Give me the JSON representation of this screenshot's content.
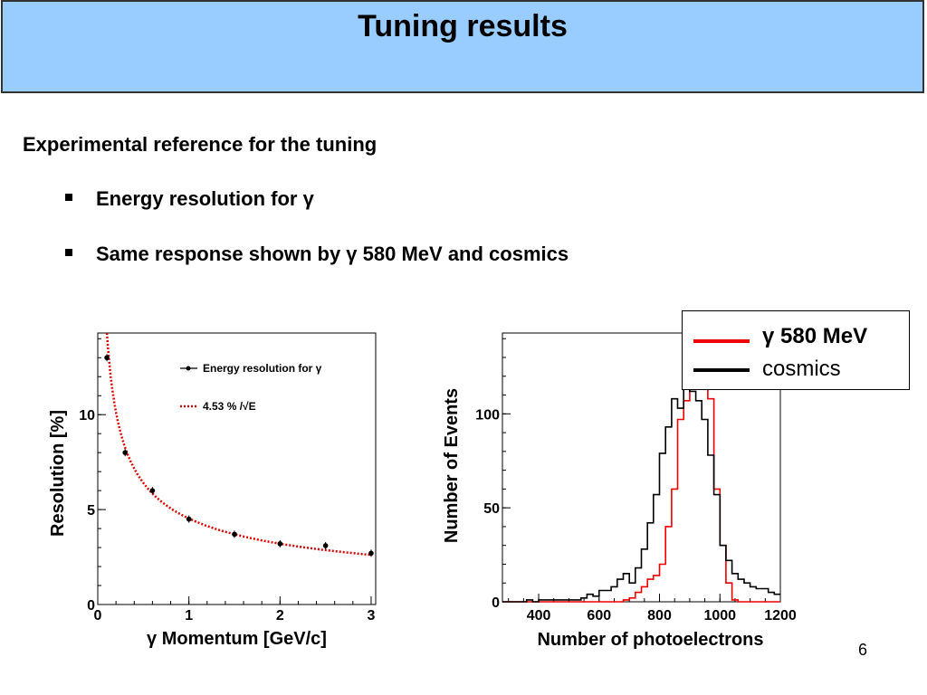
{
  "slide": {
    "title": "Tuning results",
    "heading": "Experimental reference for the tuning",
    "bullets": [
      "Energy resolution for γ",
      "Same response shown by γ 580 MeV and cosmics"
    ],
    "page_number": "6"
  },
  "chart_data": [
    {
      "type": "scatter",
      "title": "",
      "xlabel": "γ Momentum [GeV/c]",
      "ylabel": "Resolution [%]",
      "xlim": [
        0,
        3.05
      ],
      "ylim": [
        0,
        14.3
      ],
      "xticks": [
        0,
        1,
        2,
        3
      ],
      "yticks": [
        0,
        5,
        10
      ],
      "series": [
        {
          "name": "Energy resolution for γ",
          "kind": "points",
          "color": "#000000",
          "x": [
            0.1,
            0.3,
            0.6,
            1.0,
            1.5,
            2.0,
            2.5,
            3.0
          ],
          "y": [
            13.0,
            8.0,
            6.0,
            4.5,
            3.7,
            3.2,
            3.1,
            2.7
          ]
        },
        {
          "name": "4.53 % /√E",
          "kind": "dotted-curve",
          "color": "#dd0000",
          "coefficient": 4.53,
          "x_range": [
            0.1,
            3.0
          ]
        }
      ],
      "legend": "top-right"
    },
    {
      "type": "line",
      "title": "",
      "xlabel": "Number of photoelectrons",
      "ylabel": "Number of Events",
      "xlim": [
        280,
        1200
      ],
      "ylim": [
        0,
        143
      ],
      "xticks": [
        400,
        600,
        800,
        1000,
        1200
      ],
      "yticks": [
        0,
        50,
        100
      ],
      "series": [
        {
          "name": "γ 580 MeV",
          "color": "#ee0000",
          "bin_width": 20,
          "bin_start": 280,
          "values": [
            0,
            0,
            0,
            0,
            0,
            0,
            0,
            0,
            0,
            0,
            0,
            0,
            0,
            0,
            0,
            0,
            0,
            0,
            0,
            0,
            1,
            2,
            5,
            8,
            12,
            14,
            20,
            40,
            60,
            97,
            107,
            137,
            133,
            115,
            108,
            60,
            30,
            10,
            1,
            0,
            0,
            0,
            0,
            0,
            0,
            0,
            0
          ]
        },
        {
          "name": "cosmics",
          "color": "#000000",
          "bin_width": 20,
          "bin_start": 280,
          "values": [
            0,
            0,
            0,
            0,
            1,
            0,
            1,
            1,
            1,
            1,
            1,
            1,
            1,
            2,
            4,
            3,
            6,
            6,
            8,
            12,
            15,
            10,
            18,
            28,
            42,
            57,
            79,
            93,
            108,
            103,
            134,
            112,
            107,
            97,
            78,
            57,
            30,
            22,
            15,
            12,
            10,
            8,
            7,
            7,
            5,
            4,
            4
          ]
        }
      ],
      "legend": "top-right"
    }
  ]
}
